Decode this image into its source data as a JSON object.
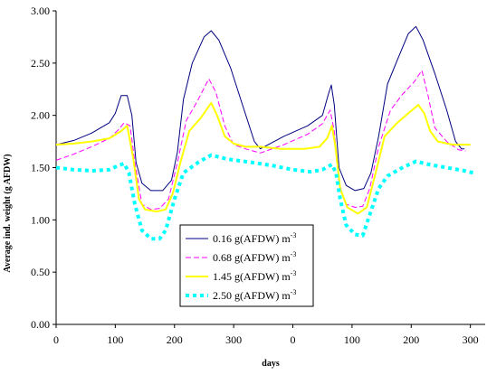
{
  "chart_data": {
    "type": "line",
    "title": "",
    "xlabel": "days",
    "ylabel": "Average ind. weight (g AFDW)",
    "ylim": [
      0,
      3
    ],
    "x_ticks": [
      "0",
      "100",
      "200",
      "300",
      "0",
      "100",
      "200",
      "300"
    ],
    "y_ticks": [
      "0.00",
      "0.50",
      "1.00",
      "1.50",
      "2.00",
      "2.50",
      "3.00"
    ],
    "grid": false,
    "legend_position": "bottom-center",
    "legend_unit_sup": "-3",
    "series": [
      {
        "name": "0.16 g(AFDW) m",
        "color": "#000080",
        "style": "solid",
        "points": [
          [
            0,
            1.72
          ],
          [
            30,
            1.76
          ],
          [
            60,
            1.83
          ],
          [
            90,
            1.93
          ],
          [
            100,
            2.02
          ],
          [
            110,
            2.19
          ],
          [
            120,
            2.19
          ],
          [
            128,
            2.0
          ],
          [
            135,
            1.55
          ],
          [
            145,
            1.35
          ],
          [
            160,
            1.28
          ],
          [
            180,
            1.28
          ],
          [
            195,
            1.38
          ],
          [
            205,
            1.65
          ],
          [
            215,
            2.15
          ],
          [
            230,
            2.5
          ],
          [
            250,
            2.75
          ],
          [
            262,
            2.81
          ],
          [
            275,
            2.72
          ],
          [
            295,
            2.45
          ],
          [
            315,
            2.1
          ],
          [
            335,
            1.75
          ],
          [
            345,
            1.68
          ],
          [
            385,
            1.8
          ],
          [
            425,
            1.9
          ],
          [
            450,
            2.0
          ],
          [
            460,
            2.2
          ],
          [
            465,
            2.29
          ],
          [
            470,
            2.1
          ],
          [
            478,
            1.5
          ],
          [
            490,
            1.33
          ],
          [
            505,
            1.28
          ],
          [
            520,
            1.3
          ],
          [
            532,
            1.45
          ],
          [
            545,
            1.8
          ],
          [
            560,
            2.3
          ],
          [
            578,
            2.55
          ],
          [
            595,
            2.78
          ],
          [
            608,
            2.85
          ],
          [
            620,
            2.72
          ],
          [
            640,
            2.4
          ],
          [
            660,
            2.05
          ],
          [
            675,
            1.75
          ],
          [
            685,
            1.68
          ],
          [
            690,
            1.68
          ]
        ]
      },
      {
        "name": "0.68 g(AFDW) m",
        "color": "#ff00ff",
        "style": "dashed",
        "points": [
          [
            0,
            1.57
          ],
          [
            30,
            1.63
          ],
          [
            60,
            1.7
          ],
          [
            90,
            1.78
          ],
          [
            105,
            1.86
          ],
          [
            115,
            1.93
          ],
          [
            125,
            1.9
          ],
          [
            133,
            1.55
          ],
          [
            145,
            1.15
          ],
          [
            160,
            1.1
          ],
          [
            175,
            1.11
          ],
          [
            190,
            1.2
          ],
          [
            205,
            1.55
          ],
          [
            220,
            1.95
          ],
          [
            240,
            2.15
          ],
          [
            258,
            2.35
          ],
          [
            270,
            2.22
          ],
          [
            285,
            1.9
          ],
          [
            300,
            1.72
          ],
          [
            320,
            1.68
          ],
          [
            345,
            1.64
          ],
          [
            385,
            1.72
          ],
          [
            425,
            1.82
          ],
          [
            450,
            1.92
          ],
          [
            463,
            2.05
          ],
          [
            470,
            1.85
          ],
          [
            478,
            1.35
          ],
          [
            490,
            1.15
          ],
          [
            505,
            1.12
          ],
          [
            518,
            1.13
          ],
          [
            530,
            1.3
          ],
          [
            545,
            1.7
          ],
          [
            565,
            2.05
          ],
          [
            585,
            2.2
          ],
          [
            605,
            2.32
          ],
          [
            618,
            2.43
          ],
          [
            628,
            2.2
          ],
          [
            640,
            1.88
          ],
          [
            660,
            1.75
          ],
          [
            680,
            1.67
          ],
          [
            692,
            1.66
          ]
        ]
      },
      {
        "name": "1.45 g(AFDW) m",
        "color": "#ffff00",
        "style": "solid",
        "points": [
          [
            0,
            1.72
          ],
          [
            30,
            1.73
          ],
          [
            60,
            1.75
          ],
          [
            90,
            1.78
          ],
          [
            110,
            1.85
          ],
          [
            120,
            1.9
          ],
          [
            130,
            1.6
          ],
          [
            140,
            1.2
          ],
          [
            150,
            1.1
          ],
          [
            170,
            1.08
          ],
          [
            185,
            1.1
          ],
          [
            197,
            1.25
          ],
          [
            210,
            1.55
          ],
          [
            225,
            1.85
          ],
          [
            245,
            1.98
          ],
          [
            262,
            2.12
          ],
          [
            272,
            2.0
          ],
          [
            285,
            1.8
          ],
          [
            300,
            1.73
          ],
          [
            320,
            1.7
          ],
          [
            345,
            1.7
          ],
          [
            380,
            1.68
          ],
          [
            420,
            1.68
          ],
          [
            445,
            1.7
          ],
          [
            458,
            1.78
          ],
          [
            466,
            1.9
          ],
          [
            472,
            1.7
          ],
          [
            480,
            1.3
          ],
          [
            492,
            1.12
          ],
          [
            510,
            1.06
          ],
          [
            525,
            1.12
          ],
          [
            540,
            1.45
          ],
          [
            555,
            1.8
          ],
          [
            575,
            1.92
          ],
          [
            595,
            2.02
          ],
          [
            612,
            2.1
          ],
          [
            622,
            2.02
          ],
          [
            632,
            1.85
          ],
          [
            645,
            1.75
          ],
          [
            670,
            1.72
          ],
          [
            700,
            1.72
          ]
        ]
      },
      {
        "name": "2.50 g(AFDW) m",
        "color": "#00ffff",
        "style": "dotted",
        "points": [
          [
            0,
            1.5
          ],
          [
            30,
            1.48
          ],
          [
            60,
            1.47
          ],
          [
            90,
            1.48
          ],
          [
            105,
            1.52
          ],
          [
            115,
            1.54
          ],
          [
            123,
            1.45
          ],
          [
            133,
            1.15
          ],
          [
            145,
            0.9
          ],
          [
            160,
            0.82
          ],
          [
            175,
            0.82
          ],
          [
            185,
            0.9
          ],
          [
            200,
            1.2
          ],
          [
            215,
            1.45
          ],
          [
            240,
            1.55
          ],
          [
            262,
            1.62
          ],
          [
            290,
            1.58
          ],
          [
            330,
            1.55
          ],
          [
            365,
            1.52
          ],
          [
            400,
            1.48
          ],
          [
            430,
            1.46
          ],
          [
            450,
            1.48
          ],
          [
            466,
            1.53
          ],
          [
            473,
            1.45
          ],
          [
            480,
            1.2
          ],
          [
            490,
            0.95
          ],
          [
            505,
            0.86
          ],
          [
            518,
            0.85
          ],
          [
            530,
            1.05
          ],
          [
            545,
            1.3
          ],
          [
            560,
            1.42
          ],
          [
            585,
            1.5
          ],
          [
            608,
            1.56
          ],
          [
            630,
            1.53
          ],
          [
            660,
            1.5
          ],
          [
            690,
            1.47
          ],
          [
            705,
            1.45
          ]
        ]
      }
    ]
  }
}
